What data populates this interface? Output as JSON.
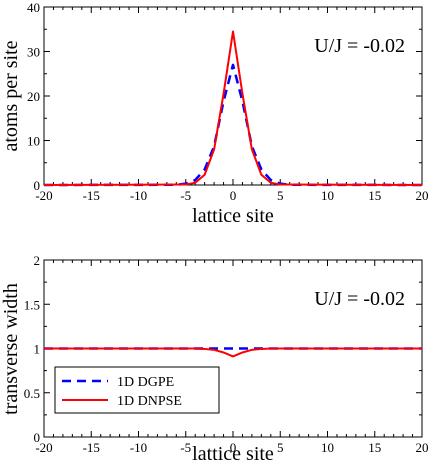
{
  "chart_data": [
    {
      "type": "line",
      "xlabel": "lattice site",
      "ylabel": "atoms per site",
      "annotation": "U/J = -0.02",
      "xlim": [
        -20,
        20
      ],
      "ylim": [
        0,
        40
      ],
      "xticks": [
        -20,
        -15,
        -10,
        -5,
        0,
        5,
        10,
        15,
        20
      ],
      "yticks": [
        0,
        10,
        20,
        30,
        40
      ],
      "grid": false,
      "series": [
        {
          "name": "1D DGPE",
          "color": "#0000ff",
          "dash": "dashed",
          "x": [
            -20,
            -6,
            -5,
            -4,
            -3,
            -2,
            -1,
            0,
            1,
            2,
            3,
            4,
            5,
            6,
            20
          ],
          "y": [
            0,
            0.05,
            0.3,
            1.1,
            3.5,
            8.7,
            18.8,
            27,
            18.8,
            8.7,
            3.5,
            1.1,
            0.3,
            0.05,
            0
          ]
        },
        {
          "name": "1D DNPSE",
          "color": "#ff0000",
          "dash": "solid",
          "x": [
            -20,
            -5,
            -4,
            -3,
            -2,
            -1,
            0,
            1,
            2,
            3,
            4,
            5,
            20
          ],
          "y": [
            0,
            0.1,
            0.5,
            2.3,
            8.0,
            20.5,
            34.5,
            20.5,
            8.0,
            2.3,
            0.5,
            0.1,
            0
          ]
        }
      ]
    },
    {
      "type": "line",
      "xlabel": "lattice site",
      "ylabel": "transverse width",
      "annotation": "U/J = -0.02",
      "xlim": [
        -20,
        20
      ],
      "ylim": [
        0,
        2
      ],
      "xticks": [
        -20,
        -15,
        -10,
        -5,
        0,
        5,
        10,
        15,
        20
      ],
      "yticks": [
        0,
        0.5,
        1,
        1.5,
        2
      ],
      "grid": false,
      "legend": {
        "position": "bottom-left"
      },
      "series": [
        {
          "name": "1D DGPE",
          "color": "#0000ff",
          "dash": "dashed",
          "x": [
            -20,
            20
          ],
          "y": [
            1,
            1
          ]
        },
        {
          "name": "1D DNPSE",
          "color": "#ff0000",
          "dash": "solid",
          "x": [
            -20,
            -4,
            -3,
            -2,
            -1,
            0,
            1,
            2,
            3,
            4,
            20
          ],
          "y": [
            1,
            1,
            0.995,
            0.985,
            0.955,
            0.91,
            0.955,
            0.985,
            0.995,
            1,
            1
          ]
        }
      ]
    }
  ]
}
